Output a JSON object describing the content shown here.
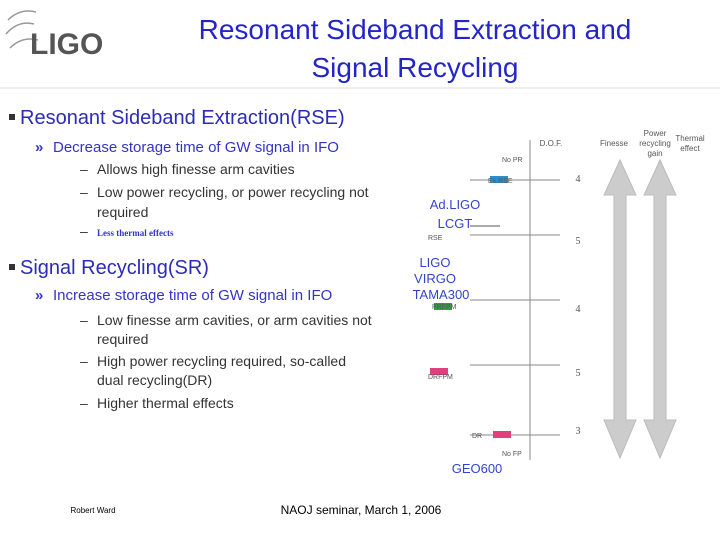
{
  "header": {
    "logo": "LIGO",
    "title": [
      "Resonant Sideband Extraction and",
      "Signal Recycling"
    ]
  },
  "bullets": [
    {
      "text": "Resonant Sideband Extraction(RSE)",
      "sub": {
        "text": "Decrease storage time of GW signal in IFO",
        "items": [
          [
            "Allows high finesse arm cavities"
          ],
          [
            "Low power recycling, or power recycling not",
            "required"
          ],
          [
            "Less thermal effects"
          ]
        ]
      }
    },
    {
      "text": "Signal Recycling(SR)",
      "sub": {
        "text": "Increase storage time of GW signal in IFO",
        "items": [
          [
            "Low finesse arm cavities, or arm cavities not",
            "required"
          ],
          [
            "High power recycling required, so-called",
            "dual recycling(DR)"
          ],
          [
            "Higher thermal effects"
          ]
        ]
      }
    }
  ],
  "diagram": {
    "columns": [
      [
        "D.O.F."
      ],
      [
        "Finesse"
      ],
      [
        "Power",
        "recycling",
        "gain"
      ],
      [
        "Thermal",
        "effect"
      ]
    ],
    "configs": [
      "No PR",
      "Ex.RSE",
      "RSE",
      "PRFPM",
      "DRFPM",
      "DR",
      "No FP"
    ],
    "dof": [
      "4",
      "5",
      "4",
      "5",
      "3"
    ],
    "groups": [
      [
        "Ad.LIGO",
        "LCGT"
      ],
      [
        "LIGO",
        "VIRGO",
        "TAMA300"
      ],
      [
        "GEO600"
      ]
    ]
  },
  "footer": {
    "author": "Robert Ward",
    "event": "NAOJ seminar, March 1, 2006"
  }
}
